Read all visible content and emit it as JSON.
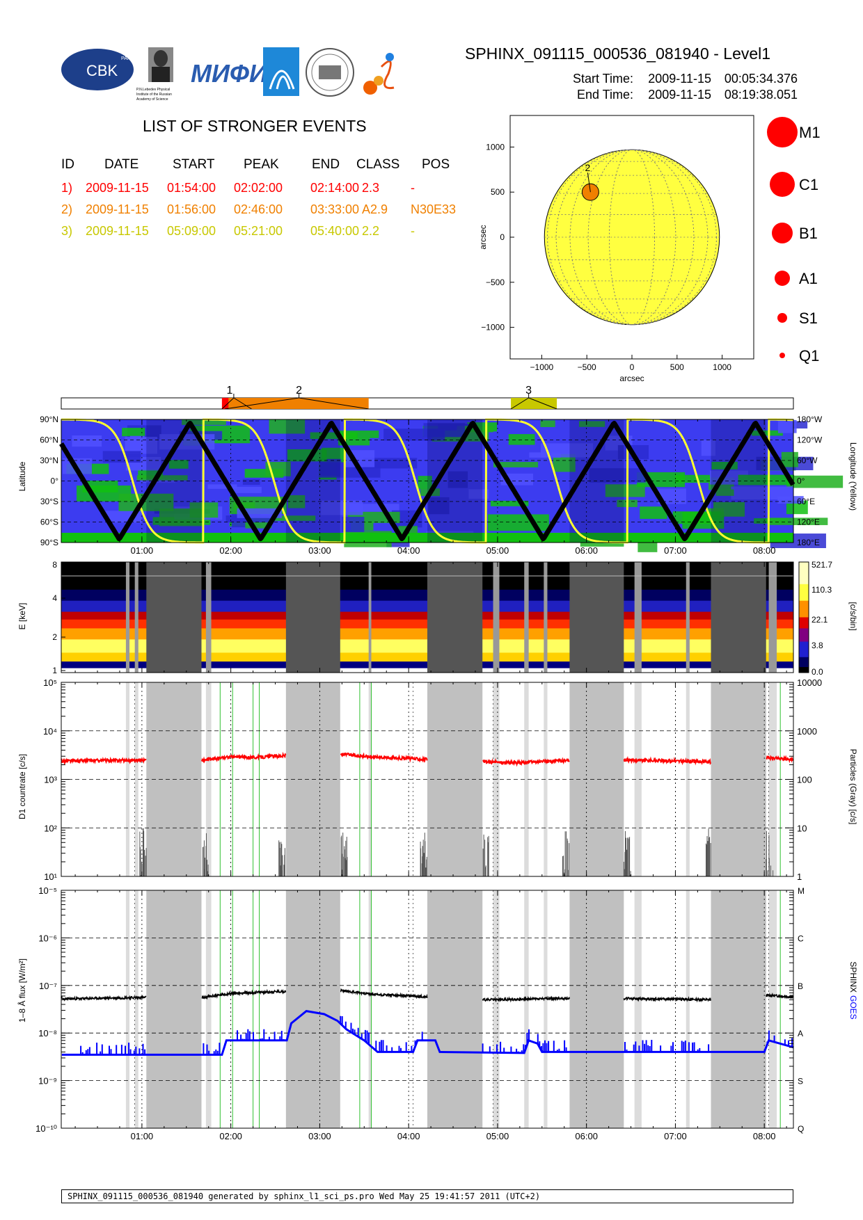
{
  "header": {
    "title": "SPHINX_091115_000536_081940 - Level1",
    "start_label": "Start Time:",
    "start_date": "2009-11-15",
    "start_time": "00:05:34.376",
    "end_label": "End Time:",
    "end_date": "2009-11-15",
    "end_time": "08:19:38.051",
    "logos": [
      {
        "name": "cbk-logo",
        "text": "CBK",
        "sub": "PAN"
      },
      {
        "name": "lebedev-logo",
        "text": "P.N.Lebedev Physical Institute of the Russian Academy of Science"
      },
      {
        "name": "mifi-logo",
        "text": "МИФИ"
      },
      {
        "name": "rocket-logo",
        "text": ""
      },
      {
        "name": "seal-logo",
        "text": ""
      },
      {
        "name": "sun-logo",
        "text": ""
      }
    ]
  },
  "events": {
    "title": "LIST OF STRONGER EVENTS",
    "columns": [
      "ID",
      "DATE",
      "START",
      "PEAK",
      "END",
      "CLASS",
      "POS"
    ],
    "rows": [
      {
        "id": "1)",
        "date": "2009-11-15",
        "start": "01:54:00",
        "peak": "02:02:00",
        "end": "02:14:00",
        "class": "2.3",
        "pos": "-",
        "color": "#ff0000"
      },
      {
        "id": "2)",
        "date": "2009-11-15",
        "start": "01:56:00",
        "peak": "02:46:00",
        "end": "03:33:00",
        "class": "A2.9",
        "pos": "N30E33",
        "color": "#f08000"
      },
      {
        "id": "3)",
        "date": "2009-11-15",
        "start": "05:09:00",
        "peak": "05:21:00",
        "end": "05:40:00",
        "class": "2.2",
        "pos": "-",
        "color": "#c8c800"
      }
    ]
  },
  "sun_map": {
    "xlabel": "arcsec",
    "ylabel": "arcsec",
    "xticks": [
      "-1000",
      "-500",
      "0",
      "500",
      "1000"
    ],
    "yticks": [
      "1000",
      "500",
      "0",
      "-500",
      "-1000"
    ],
    "xlim": [
      -1350,
      1350
    ],
    "ylim": [
      -1350,
      1350
    ],
    "disk_radius": 970,
    "disk_color": "#ffff40",
    "event_label": "2",
    "event_x": -460,
    "event_y": 500,
    "event_color": "#f08000"
  },
  "class_legend": [
    {
      "label": "M1",
      "r": 22
    },
    {
      "label": "C1",
      "r": 18
    },
    {
      "label": "B1",
      "r": 15
    },
    {
      "label": "A1",
      "r": 11
    },
    {
      "label": "S1",
      "r": 7
    },
    {
      "label": "Q1",
      "r": 4
    }
  ],
  "event_bar": {
    "labels": [
      {
        "text": "1"
      },
      {
        "text": "2"
      },
      {
        "text": "3"
      }
    ]
  },
  "panels": {
    "orbit": {
      "ylabel": "Latitude",
      "ylabel_right": "Longitude (Yellow)",
      "yticks_left": [
        "90°N",
        "60°N",
        "30°N",
        "0°",
        "30°S",
        "60°S",
        "90°S"
      ],
      "yticks_right": [
        "180°W",
        "120°W",
        "60°W",
        "0°",
        "60°E",
        "120°E",
        "180°E"
      ]
    },
    "spectrogram": {
      "ylabel": "E [keV]",
      "yticks": [
        "8",
        "4",
        "2",
        "1"
      ],
      "cbar_label": "[c/s/bin]",
      "cbar_ticks": [
        "521.7",
        "110.3",
        "22.1",
        "3.8",
        "0.0"
      ]
    },
    "countrate": {
      "ylabel": "D1 countrate [c/s]",
      "ylabel_right": "Particles (Gray) [c/s]",
      "yticks_left": [
        "10⁵",
        "10⁴",
        "10³",
        "10²",
        "10¹"
      ],
      "yticks_right": [
        "10000",
        "1000",
        "100",
        "10",
        "1"
      ]
    },
    "flux": {
      "ylabel": "1–8 Å flux [W/m²]",
      "ylabel_right_a": "SPHINX",
      "ylabel_right_b": "GOES",
      "yticks_left": [
        "10⁻⁵",
        "10⁻⁶",
        "10⁻⁷",
        "10⁻⁸",
        "10⁻⁹",
        "10⁻¹⁰"
      ],
      "yticks_right": [
        "M",
        "C",
        "B",
        "A",
        "S",
        "Q"
      ]
    },
    "time_ticks": [
      "01:00",
      "02:00",
      "03:00",
      "04:00",
      "05:00",
      "06:00",
      "07:00",
      "08:00"
    ]
  },
  "chart_data": {
    "type": "line",
    "x_range_hours": [
      0.0928,
      8.3273
    ],
    "eclipses": [
      [
        1.05,
        1.67
      ],
      [
        2.62,
        3.23
      ],
      [
        4.21,
        4.83
      ],
      [
        5.81,
        6.42
      ],
      [
        7.4,
        8.02
      ]
    ],
    "extra_gray_bands": [
      [
        0.82,
        0.86
      ],
      [
        0.92,
        0.96
      ],
      [
        1.72,
        1.78
      ],
      [
        3.55,
        3.58
      ],
      [
        4.95,
        5.02
      ],
      [
        5.3,
        5.35
      ],
      [
        5.52,
        5.56
      ],
      [
        6.54,
        6.62
      ],
      [
        7.12,
        7.16
      ],
      [
        8.05,
        8.14
      ]
    ],
    "events_hours": [
      {
        "id": "1",
        "start": 1.9,
        "peak": 2.0333,
        "end": 2.2333
      },
      {
        "id": "2",
        "start": 1.9333,
        "peak": 2.7667,
        "end": 3.55
      },
      {
        "id": "3",
        "start": 5.15,
        "peak": 5.35,
        "end": 5.6667
      }
    ],
    "series": [
      {
        "name": "D1 countrate",
        "color": "#ff0000",
        "unit": "c/s",
        "points": [
          [
            0.1,
            2400
          ],
          [
            0.5,
            2450
          ],
          [
            1.0,
            2500
          ],
          [
            1.7,
            2500
          ],
          [
            2.0,
            2900
          ],
          [
            2.3,
            2850
          ],
          [
            2.6,
            3100
          ],
          [
            3.25,
            3300
          ],
          [
            3.6,
            2900
          ],
          [
            4.2,
            2600
          ],
          [
            4.85,
            2300
          ],
          [
            5.2,
            2200
          ],
          [
            5.8,
            2450
          ],
          [
            6.45,
            2500
          ],
          [
            7.0,
            2400
          ],
          [
            7.4,
            2300
          ],
          [
            8.05,
            2800
          ],
          [
            8.3,
            2600
          ]
        ]
      },
      {
        "name": "SPHINX",
        "color": "#000000",
        "unit": "W/m2",
        "points": [
          [
            0.1,
            5.2e-08
          ],
          [
            1.0,
            5.6e-08
          ],
          [
            1.7,
            5.6e-08
          ],
          [
            2.0,
            6.8e-08
          ],
          [
            2.6,
            7.5e-08
          ],
          [
            3.25,
            7.8e-08
          ],
          [
            3.6,
            6.5e-08
          ],
          [
            4.2,
            5.8e-08
          ],
          [
            4.85,
            5e-08
          ],
          [
            5.2,
            5.1e-08
          ],
          [
            5.8,
            5.4e-08
          ],
          [
            6.45,
            5.3e-08
          ],
          [
            7.0,
            5.2e-08
          ],
          [
            7.4,
            5e-08
          ],
          [
            8.05,
            6.2e-08
          ],
          [
            8.3,
            5.8e-08
          ]
        ]
      },
      {
        "name": "GOES",
        "color": "#0000ff",
        "unit": "W/m2",
        "points": [
          [
            0.1,
            3.5e-09
          ],
          [
            1.9,
            3.5e-09
          ],
          [
            1.95,
            7e-09
          ],
          [
            2.63,
            7e-09
          ],
          [
            2.68,
            1.6e-08
          ],
          [
            2.85,
            2.9e-08
          ],
          [
            3.05,
            2.5e-08
          ],
          [
            3.2,
            1.8e-08
          ],
          [
            3.3,
            1.2e-08
          ],
          [
            3.5,
            7e-09
          ],
          [
            3.65,
            4e-09
          ],
          [
            4.05,
            4e-09
          ],
          [
            4.1,
            7e-09
          ],
          [
            4.3,
            7e-09
          ],
          [
            4.35,
            4e-09
          ],
          [
            5.3,
            3.8e-09
          ],
          [
            5.35,
            7e-09
          ],
          [
            5.45,
            6e-09
          ],
          [
            5.5,
            4e-09
          ],
          [
            8.0,
            4e-09
          ],
          [
            8.05,
            7e-09
          ],
          [
            8.33,
            5e-09
          ]
        ]
      }
    ]
  },
  "footer": {
    "text": "SPHINX_091115_000536_081940 generated by sphinx_l1_sci_ps.pro Wed May 25 19:41:57 2011 (UTC+2)"
  }
}
